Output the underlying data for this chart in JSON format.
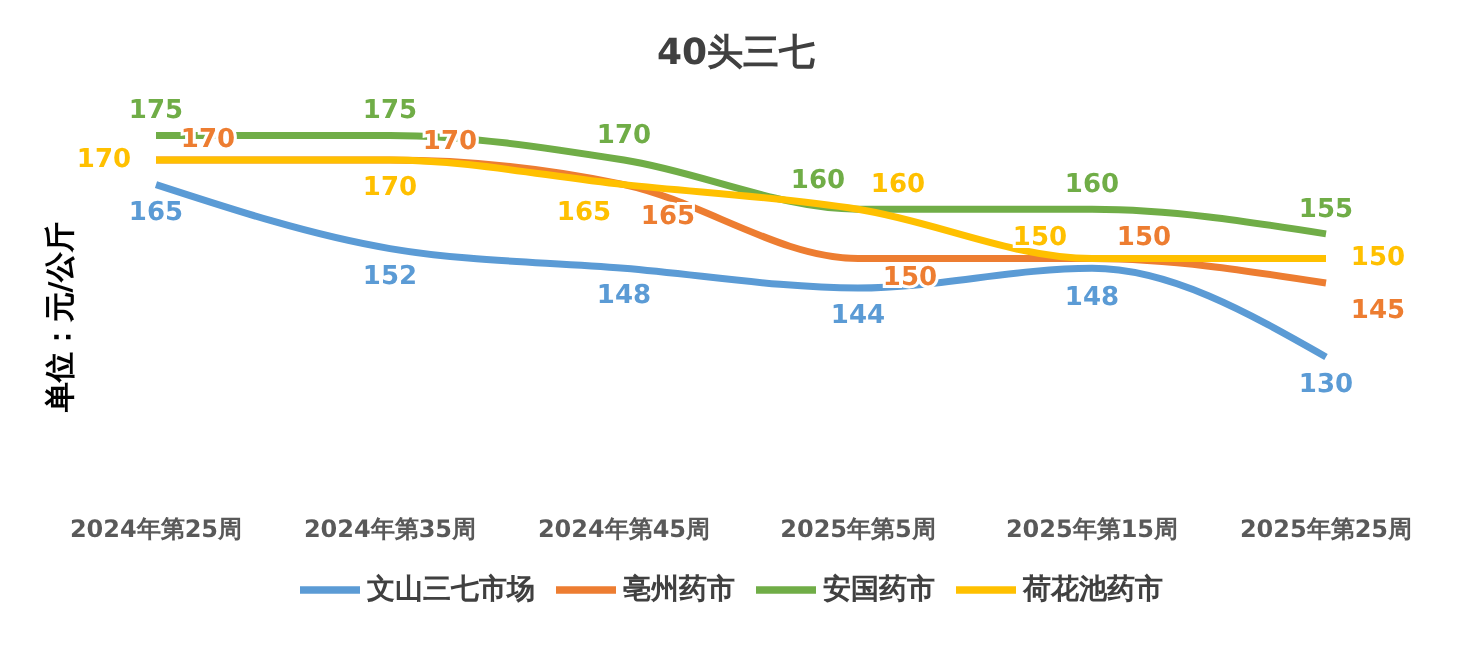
{
  "chart_data": {
    "type": "line",
    "title": "40头三七",
    "ylabel": "单位：元/公斤",
    "categories": [
      "2024年第25周",
      "2024年第35周",
      "2024年第45周",
      "2025年第5周",
      "2025年第15周",
      "2025年第25周"
    ],
    "series": [
      {
        "name": "文山三七市场",
        "color": "#5b9bd5",
        "values": [
          165,
          152,
          148,
          144,
          148,
          130
        ]
      },
      {
        "name": "亳州药市",
        "color": "#ed7d31",
        "values": [
          170,
          170,
          165,
          150,
          150,
          145
        ]
      },
      {
        "name": "安国药市",
        "color": "#70ad47",
        "values": [
          175,
          175,
          170,
          160,
          160,
          155
        ]
      },
      {
        "name": "荷花池药市",
        "color": "#ffc000",
        "values": [
          170,
          170,
          165,
          160,
          150,
          150
        ]
      }
    ],
    "data_labels": true,
    "legend": "bottom",
    "grid": false,
    "marker": "none",
    "line_style": "solid"
  }
}
